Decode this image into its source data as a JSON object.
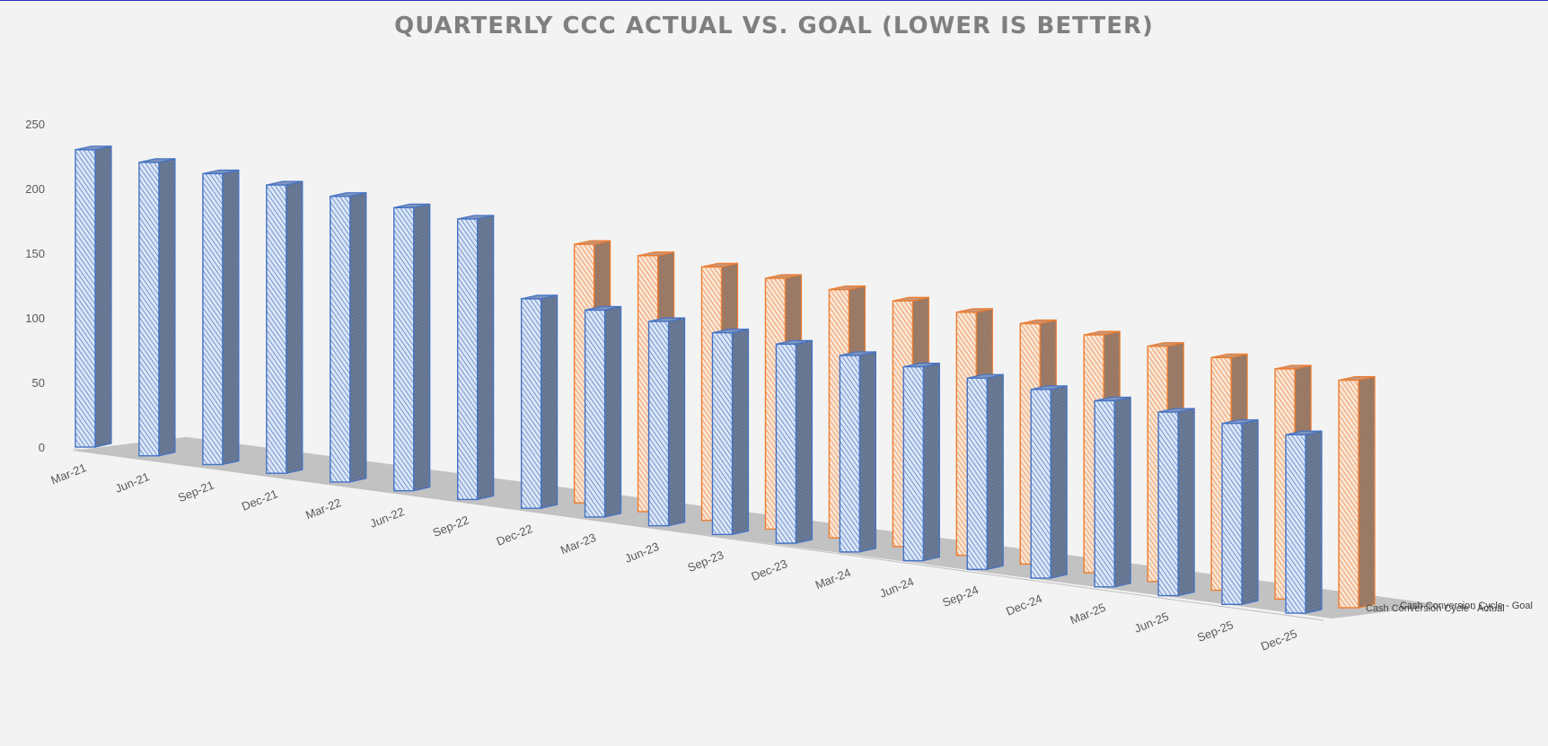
{
  "chart_data": {
    "type": "bar",
    "title": "QUARTERLY CCC ACTUAL VS. GOAL (LOWER IS BETTER)",
    "xlabel": "",
    "ylabel": "",
    "ylim": [
      0,
      250
    ],
    "yticks": [
      "0",
      "50",
      "100",
      "150",
      "200",
      "250"
    ],
    "grid": false,
    "legend_position": "depth-axis labels (right)",
    "categories": [
      "Mar-21",
      "Jun-21",
      "Sep-21",
      "Dec-21",
      "Mar-22",
      "Jun-22",
      "Sep-22",
      "Dec-22",
      "Mar-23",
      "Jun-23",
      "Sep-23",
      "Dec-23",
      "Mar-24",
      "Jun-24",
      "Sep-24",
      "Dec-24",
      "Mar-25",
      "Jun-25",
      "Sep-25",
      "Dec-25"
    ],
    "series": [
      {
        "name": "Cash Conversion Cycle - Actual",
        "color": "#4472c4",
        "values": [
          230,
          227,
          225,
          223,
          221,
          219,
          217,
          162,
          160,
          158,
          156,
          154,
          152,
          150,
          148,
          146,
          144,
          142,
          140,
          138
        ]
      },
      {
        "name": "Cash Conversion Cycle - Goal",
        "color": "#ed7d31",
        "values": [
          null,
          null,
          null,
          null,
          null,
          null,
          null,
          200,
          198,
          196,
          194,
          192,
          190,
          188,
          186,
          184,
          182,
          180,
          178,
          176
        ]
      }
    ]
  }
}
